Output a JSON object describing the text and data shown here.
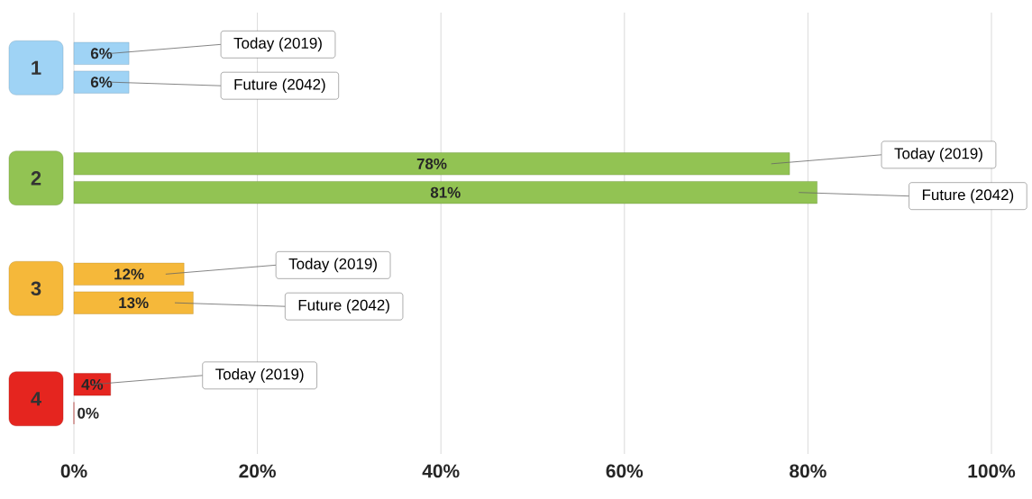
{
  "chart_data": {
    "type": "bar",
    "orientation": "horizontal",
    "categories": [
      "1",
      "2",
      "3",
      "4"
    ],
    "series": [
      {
        "name": "Today (2019)",
        "values": [
          6,
          78,
          12,
          4
        ],
        "colors": [
          "#9fd3f5",
          "#92c353",
          "#f5b83a",
          "#e5251f"
        ],
        "value_labels": [
          "6%",
          "78%",
          "12%",
          "4%"
        ]
      },
      {
        "name": "Future (2042)",
        "values": [
          6,
          81,
          13,
          0
        ],
        "colors": [
          "#9fd3f5",
          "#92c353",
          "#f5b83a",
          "#e5251f"
        ],
        "value_labels": [
          "6%",
          "81%",
          "13%",
          "0%"
        ]
      }
    ],
    "xlim": [
      0,
      100
    ],
    "xticks": [
      {
        "value": 0,
        "label": "0%"
      },
      {
        "value": 20,
        "label": "20%"
      },
      {
        "value": 40,
        "label": "40%"
      },
      {
        "value": 60,
        "label": "60%"
      },
      {
        "value": 80,
        "label": "80%"
      },
      {
        "value": 100,
        "label": "100%"
      }
    ],
    "grid": "x"
  }
}
